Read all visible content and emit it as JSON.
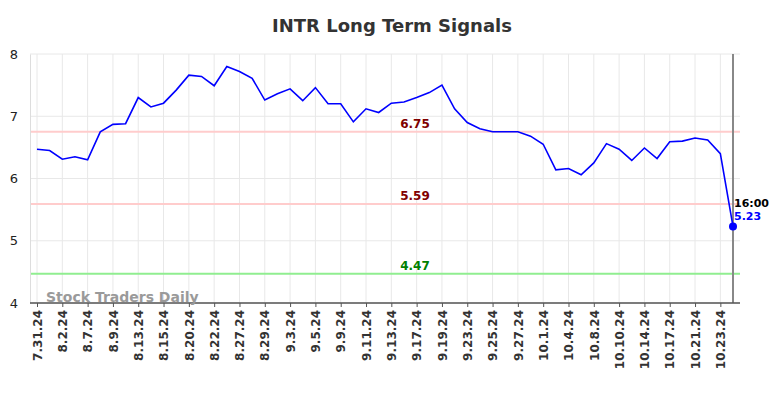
{
  "chart_data": {
    "type": "line",
    "title": "INTR Long Term Signals",
    "categories": [
      "7.31.24",
      null,
      "8.2.24",
      null,
      "8.7.24",
      null,
      "8.9.24",
      null,
      "8.13.24",
      null,
      "8.15.24",
      null,
      "8.20.24",
      null,
      "8.22.24",
      null,
      "8.27.24",
      null,
      "8.29.24",
      null,
      "9.3.24",
      null,
      "9.5.24",
      null,
      "9.9.24",
      null,
      "9.11.24",
      null,
      "9.13.24",
      null,
      "9.17.24",
      null,
      "9.19.24",
      null,
      "9.23.24",
      null,
      "9.25.24",
      null,
      "9.27.24",
      null,
      "10.1.24",
      null,
      "10.4.24",
      null,
      "10.8.24",
      null,
      "10.10.24",
      null,
      "10.14.24",
      null,
      "10.17.24",
      null,
      "10.21.24",
      null,
      "10.23.24",
      null
    ],
    "values": [
      6.47,
      6.45,
      6.31,
      6.35,
      6.3,
      6.75,
      6.87,
      6.88,
      7.3,
      7.15,
      7.21,
      7.42,
      7.66,
      7.64,
      7.49,
      7.8,
      7.72,
      7.61,
      7.26,
      7.36,
      7.44,
      7.25,
      7.46,
      7.2,
      7.2,
      6.91,
      7.12,
      7.06,
      7.21,
      7.23,
      7.3,
      7.38,
      7.5,
      7.12,
      6.9,
      6.8,
      6.75,
      6.75,
      6.75,
      6.68,
      6.55,
      6.14,
      6.16,
      6.06,
      6.25,
      6.56,
      6.47,
      6.29,
      6.49,
      6.32,
      6.59,
      6.6,
      6.65,
      6.62,
      6.4,
      5.23
    ],
    "color": "#0000ff",
    "ylim": [
      4,
      8
    ],
    "yticks": [
      4,
      5,
      6,
      7,
      8
    ],
    "grid": true,
    "reference_lines": [
      {
        "value": 6.75,
        "color": "#ffcccc"
      },
      {
        "value": 5.59,
        "color": "#ffcccc"
      },
      {
        "value": 4.47,
        "color": "#90ee90"
      }
    ],
    "annotation": "16:00",
    "watermark": "Stock Traders Daily"
  }
}
